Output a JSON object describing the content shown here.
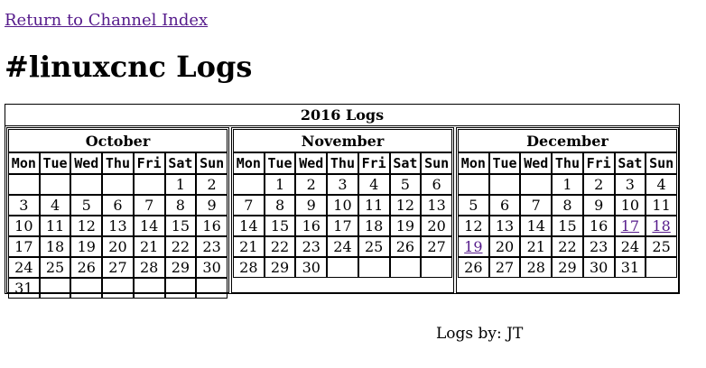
{
  "return_link": "Return to Channel Index",
  "title": "#linuxcnc Logs",
  "calendar": {
    "year_title": "2016 Logs",
    "weekdays": [
      "Mon",
      "Tue",
      "Wed",
      "Thu",
      "Fri",
      "Sat",
      "Sun"
    ],
    "months": [
      {
        "name": "October",
        "weeks": [
          [
            "",
            "",
            "",
            "",
            "",
            "1",
            "2"
          ],
          [
            "3",
            "4",
            "5",
            "6",
            "7",
            "8",
            "9"
          ],
          [
            "10",
            "11",
            "12",
            "13",
            "14",
            "15",
            "16"
          ],
          [
            "17",
            "18",
            "19",
            "20",
            "21",
            "22",
            "23"
          ],
          [
            "24",
            "25",
            "26",
            "27",
            "28",
            "29",
            "30"
          ],
          [
            "31",
            "",
            "",
            "",
            "",
            "",
            ""
          ]
        ],
        "linked_days": []
      },
      {
        "name": "November",
        "weeks": [
          [
            "",
            "1",
            "2",
            "3",
            "4",
            "5",
            "6"
          ],
          [
            "7",
            "8",
            "9",
            "10",
            "11",
            "12",
            "13"
          ],
          [
            "14",
            "15",
            "16",
            "17",
            "18",
            "19",
            "20"
          ],
          [
            "21",
            "22",
            "23",
            "24",
            "25",
            "26",
            "27"
          ],
          [
            "28",
            "29",
            "30",
            "",
            "",
            "",
            ""
          ]
        ],
        "linked_days": []
      },
      {
        "name": "December",
        "weeks": [
          [
            "",
            "",
            "",
            "1",
            "2",
            "3",
            "4"
          ],
          [
            "5",
            "6",
            "7",
            "8",
            "9",
            "10",
            "11"
          ],
          [
            "12",
            "13",
            "14",
            "15",
            "16",
            "17",
            "18"
          ],
          [
            "19",
            "20",
            "21",
            "22",
            "23",
            "24",
            "25"
          ],
          [
            "26",
            "27",
            "28",
            "29",
            "30",
            "31",
            ""
          ]
        ],
        "linked_days": [
          "17",
          "18",
          "19"
        ]
      }
    ]
  },
  "footer": "Logs by: JT",
  "colors": {
    "link": "#551a8b",
    "text": "#000000",
    "background": "#ffffff"
  }
}
